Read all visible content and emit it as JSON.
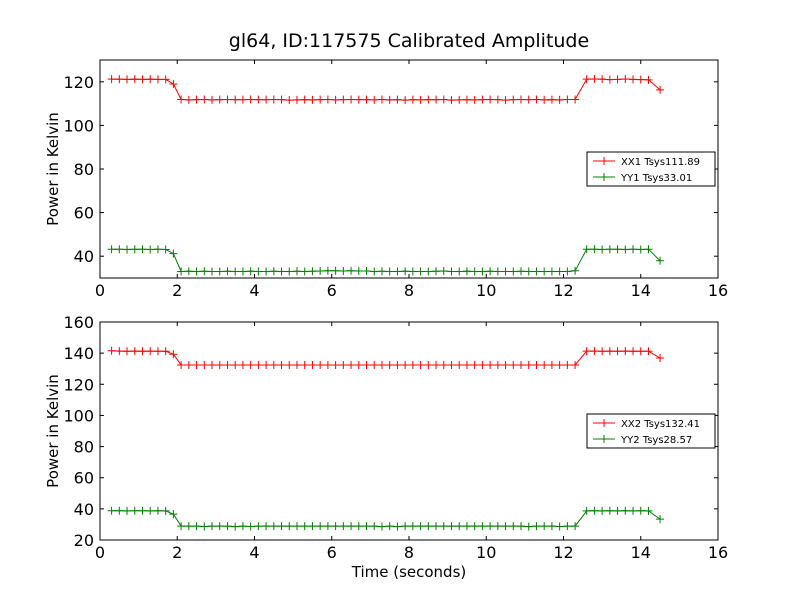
{
  "chart_data": [
    {
      "type": "line",
      "title": "gl64, ID:117575 Calibrated Amplitude",
      "xlabel": "",
      "ylabel": "Power in Kelvin",
      "xlim": [
        0,
        16
      ],
      "ylim": [
        30,
        130
      ],
      "xticks": [
        0,
        2,
        4,
        6,
        8,
        10,
        12,
        14,
        16
      ],
      "yticks": [
        40,
        60,
        80,
        100,
        120
      ],
      "legend_position": "center-right",
      "grid": false,
      "series": [
        {
          "name": "XX1 Tsys111.89",
          "color": "#ff0000",
          "x": [
            0.3,
            0.5,
            0.7,
            0.9,
            1.1,
            1.3,
            1.5,
            1.7,
            1.9,
            2.1,
            2.3,
            2.5,
            2.7,
            2.9,
            3.1,
            3.3,
            3.5,
            3.7,
            3.9,
            4.1,
            4.3,
            4.5,
            4.7,
            4.9,
            5.1,
            5.3,
            5.5,
            5.7,
            5.9,
            6.1,
            6.3,
            6.5,
            6.7,
            6.9,
            7.1,
            7.3,
            7.5,
            7.7,
            7.9,
            8.1,
            8.3,
            8.5,
            8.7,
            8.9,
            9.1,
            9.3,
            9.5,
            9.7,
            9.9,
            10.1,
            10.3,
            10.5,
            10.7,
            10.9,
            11.1,
            11.3,
            11.5,
            11.7,
            11.9,
            12.1,
            12.3,
            12.6,
            12.8,
            13.0,
            13.2,
            13.4,
            13.6,
            13.8,
            14.0,
            14.2,
            14.5
          ],
          "y": [
            121.2,
            121.2,
            121.1,
            121.2,
            121.1,
            121.2,
            121.1,
            121.1,
            119.0,
            111.9,
            111.7,
            111.8,
            111.9,
            111.7,
            111.8,
            111.9,
            111.8,
            111.8,
            111.9,
            111.8,
            111.8,
            111.9,
            111.8,
            111.6,
            111.7,
            111.8,
            111.7,
            111.8,
            111.9,
            111.7,
            111.8,
            111.9,
            111.8,
            111.8,
            111.7,
            111.9,
            111.7,
            111.8,
            111.6,
            111.8,
            111.7,
            111.8,
            111.8,
            111.9,
            111.6,
            111.7,
            111.8,
            111.7,
            111.8,
            111.9,
            111.8,
            111.6,
            111.8,
            111.9,
            111.8,
            111.9,
            111.7,
            111.8,
            111.7,
            111.9,
            111.9,
            121.2,
            121.3,
            121.2,
            121.0,
            121.1,
            121.3,
            121.1,
            121.0,
            120.9,
            116.3
          ]
        },
        {
          "name": "YY1 Tsys33.01",
          "color": "#008000",
          "x": [
            0.3,
            0.5,
            0.7,
            0.9,
            1.1,
            1.3,
            1.5,
            1.7,
            1.9,
            2.1,
            2.3,
            2.5,
            2.7,
            2.9,
            3.1,
            3.3,
            3.5,
            3.7,
            3.9,
            4.1,
            4.3,
            4.5,
            4.7,
            4.9,
            5.1,
            5.3,
            5.5,
            5.7,
            5.9,
            6.1,
            6.3,
            6.5,
            6.7,
            6.9,
            7.1,
            7.3,
            7.5,
            7.7,
            7.9,
            8.1,
            8.3,
            8.5,
            8.7,
            8.9,
            9.1,
            9.3,
            9.5,
            9.7,
            9.9,
            10.1,
            10.3,
            10.5,
            10.7,
            10.9,
            11.1,
            11.3,
            11.5,
            11.7,
            11.9,
            12.1,
            12.3,
            12.6,
            12.8,
            13.0,
            13.2,
            13.4,
            13.6,
            13.8,
            14.0,
            14.2,
            14.5
          ],
          "y": [
            43.2,
            43.2,
            43.1,
            43.2,
            43.2,
            43.1,
            43.2,
            43.1,
            41.2,
            33.0,
            33.1,
            33.0,
            33.1,
            33.0,
            33.0,
            33.1,
            33.0,
            33.0,
            33.1,
            33.0,
            33.0,
            33.1,
            33.0,
            33.0,
            33.1,
            33.0,
            33.1,
            33.2,
            33.3,
            33.3,
            33.2,
            33.3,
            33.2,
            33.2,
            33.0,
            33.1,
            33.0,
            33.0,
            33.1,
            33.0,
            33.0,
            33.0,
            33.1,
            33.2,
            33.0,
            33.0,
            33.1,
            33.0,
            33.0,
            33.1,
            33.0,
            33.0,
            33.0,
            33.1,
            33.0,
            33.0,
            33.0,
            33.0,
            33.0,
            33.0,
            33.3,
            43.2,
            43.2,
            43.1,
            43.2,
            43.2,
            43.1,
            43.2,
            43.1,
            43.2,
            37.9
          ]
        }
      ]
    },
    {
      "type": "line",
      "title": "",
      "xlabel": "Time (seconds)",
      "ylabel": "Power in Kelvin",
      "xlim": [
        0,
        16
      ],
      "ylim": [
        20,
        160
      ],
      "xticks": [
        0,
        2,
        4,
        6,
        8,
        10,
        12,
        14,
        16
      ],
      "yticks": [
        20,
        40,
        60,
        80,
        100,
        120,
        140,
        160
      ],
      "legend_position": "center-right",
      "grid": false,
      "series": [
        {
          "name": "XX2 Tsys132.41",
          "color": "#ff0000",
          "x": [
            0.3,
            0.5,
            0.7,
            0.9,
            1.1,
            1.3,
            1.5,
            1.7,
            1.9,
            2.1,
            2.3,
            2.5,
            2.7,
            2.9,
            3.1,
            3.3,
            3.5,
            3.7,
            3.9,
            4.1,
            4.3,
            4.5,
            4.7,
            4.9,
            5.1,
            5.3,
            5.5,
            5.7,
            5.9,
            6.1,
            6.3,
            6.5,
            6.7,
            6.9,
            7.1,
            7.3,
            7.5,
            7.7,
            7.9,
            8.1,
            8.3,
            8.5,
            8.7,
            8.9,
            9.1,
            9.3,
            9.5,
            9.7,
            9.9,
            10.1,
            10.3,
            10.5,
            10.7,
            10.9,
            11.1,
            11.3,
            11.5,
            11.7,
            11.9,
            12.1,
            12.3,
            12.6,
            12.8,
            13.0,
            13.2,
            13.4,
            13.6,
            13.8,
            14.0,
            14.2,
            14.5
          ],
          "y": [
            141.5,
            141.3,
            141.2,
            141.3,
            141.2,
            141.3,
            141.2,
            141.2,
            139.3,
            132.4,
            132.4,
            132.4,
            132.4,
            132.4,
            132.4,
            132.4,
            132.4,
            132.4,
            132.4,
            132.4,
            132.4,
            132.4,
            132.4,
            132.4,
            132.4,
            132.4,
            132.4,
            132.4,
            132.4,
            132.4,
            132.4,
            132.4,
            132.4,
            132.4,
            132.4,
            132.4,
            132.4,
            132.4,
            132.4,
            132.4,
            132.4,
            132.4,
            132.4,
            132.4,
            132.4,
            132.4,
            132.4,
            132.4,
            132.4,
            132.4,
            132.4,
            132.4,
            132.4,
            132.4,
            132.4,
            132.4,
            132.4,
            132.4,
            132.4,
            132.4,
            132.4,
            141.3,
            141.3,
            141.2,
            141.3,
            141.2,
            141.3,
            141.2,
            141.2,
            141.2,
            136.9
          ]
        },
        {
          "name": "YY2 Tsys28.57",
          "color": "#008000",
          "x": [
            0.3,
            0.5,
            0.7,
            0.9,
            1.1,
            1.3,
            1.5,
            1.7,
            1.9,
            2.1,
            2.3,
            2.5,
            2.7,
            2.9,
            3.1,
            3.3,
            3.5,
            3.7,
            3.9,
            4.1,
            4.3,
            4.5,
            4.7,
            4.9,
            5.1,
            5.3,
            5.5,
            5.7,
            5.9,
            6.1,
            6.3,
            6.5,
            6.7,
            6.9,
            7.1,
            7.3,
            7.5,
            7.7,
            7.9,
            8.1,
            8.3,
            8.5,
            8.7,
            8.9,
            9.1,
            9.3,
            9.5,
            9.7,
            9.9,
            10.1,
            10.3,
            10.5,
            10.7,
            10.9,
            11.1,
            11.3,
            11.5,
            11.7,
            11.9,
            12.1,
            12.3,
            12.6,
            12.8,
            13.0,
            13.2,
            13.4,
            13.6,
            13.8,
            14.0,
            14.2,
            14.5
          ],
          "y": [
            38.8,
            38.8,
            38.7,
            38.8,
            38.8,
            38.7,
            38.8,
            38.7,
            36.6,
            28.9,
            28.9,
            28.9,
            28.7,
            28.9,
            28.9,
            28.9,
            28.6,
            28.9,
            28.7,
            28.9,
            28.9,
            28.9,
            28.9,
            28.9,
            28.9,
            28.9,
            28.9,
            28.9,
            28.9,
            28.9,
            28.9,
            28.9,
            28.9,
            28.9,
            28.9,
            28.6,
            28.9,
            28.6,
            28.9,
            28.9,
            28.9,
            28.9,
            28.9,
            28.9,
            28.9,
            28.9,
            28.9,
            28.9,
            28.9,
            28.9,
            28.9,
            28.9,
            28.9,
            28.9,
            28.6,
            28.9,
            28.9,
            28.9,
            28.7,
            28.9,
            28.9,
            38.7,
            38.8,
            38.7,
            38.8,
            38.7,
            38.8,
            38.7,
            38.8,
            38.7,
            33.4
          ]
        }
      ]
    }
  ]
}
